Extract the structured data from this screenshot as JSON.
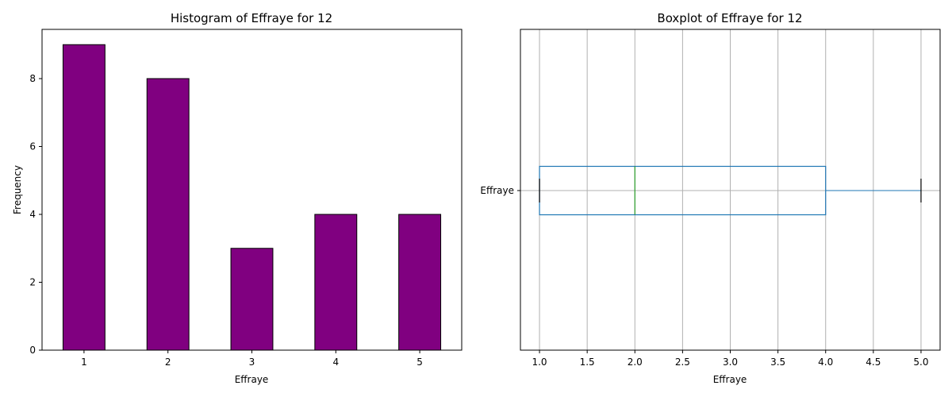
{
  "chart_data": [
    {
      "type": "bar",
      "title": "Histogram of Effraye for 12",
      "xlabel": "Effraye",
      "ylabel": "Frequency",
      "categories": [
        "1",
        "2",
        "3",
        "4",
        "5"
      ],
      "values": [
        9,
        8,
        3,
        4,
        4
      ],
      "ylim": [
        0,
        9.45
      ],
      "yticks": [
        0,
        2,
        4,
        6,
        8
      ],
      "grid": false,
      "colors": {
        "bar_fill": "#800080",
        "bar_edge": "#000000"
      }
    },
    {
      "type": "boxplot",
      "title": "Boxplot of Effraye for 12",
      "xlabel": "Effraye",
      "category_label": "Effraye",
      "stats": {
        "whisker_low": 1.0,
        "q1": 1.0,
        "median": 2.0,
        "q3": 4.0,
        "whisker_high": 5.0
      },
      "xlim": [
        0.8,
        5.2
      ],
      "xticks": [
        "1.0",
        "1.5",
        "2.0",
        "2.5",
        "3.0",
        "3.5",
        "4.0",
        "4.5",
        "5.0"
      ],
      "orientation": "horizontal",
      "grid": true,
      "colors": {
        "box": "#1f77b4",
        "median": "#2ca02c",
        "caps": "#000000",
        "grid": "#b0b0b0"
      }
    }
  ]
}
